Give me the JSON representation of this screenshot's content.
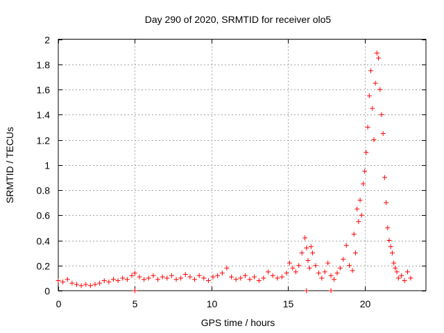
{
  "chart_data": {
    "type": "scatter",
    "title": "Day 290 of 2020, SRMTID for receiver olo5",
    "xlabel": "GPS time / hours",
    "ylabel": "SRMTID / TECUs",
    "xlim": [
      0,
      24
    ],
    "ylim": [
      0,
      2
    ],
    "xticks": [
      0,
      5,
      10,
      15,
      20
    ],
    "yticks": [
      0,
      0.2,
      0.4,
      0.6,
      0.8,
      1,
      1.2,
      1.4,
      1.6,
      1.8,
      2
    ],
    "xtick_labels": [
      "0",
      "5",
      "10",
      "15",
      "20"
    ],
    "ytick_labels": [
      "0",
      "0.2",
      "0.4",
      "0.6",
      "0.8",
      "1",
      "1.2",
      "1.4",
      "1.6",
      "1.8",
      "2"
    ],
    "grid": true,
    "marker": "+",
    "marker_color": "#ff0000",
    "series": [
      {
        "name": "SRMTID",
        "x": [
          0.0,
          0.3,
          0.6,
          0.9,
          1.2,
          1.5,
          1.8,
          2.1,
          2.4,
          2.7,
          3.0,
          3.3,
          3.6,
          3.9,
          4.2,
          4.5,
          4.8,
          5.0,
          5.3,
          5.6,
          5.9,
          6.2,
          6.5,
          6.8,
          7.1,
          7.4,
          7.7,
          8.0,
          8.3,
          8.6,
          8.9,
          9.2,
          9.5,
          9.8,
          10.1,
          10.4,
          10.7,
          11.0,
          11.3,
          11.6,
          11.9,
          12.2,
          12.5,
          12.8,
          13.1,
          13.4,
          13.7,
          14.0,
          14.3,
          14.6,
          14.9,
          15.1,
          15.3,
          15.5,
          15.7,
          15.9,
          16.1,
          16.2,
          16.3,
          16.4,
          16.5,
          16.6,
          16.8,
          17.0,
          17.2,
          17.4,
          17.6,
          17.8,
          18.0,
          18.2,
          18.4,
          18.6,
          18.8,
          19.0,
          19.2,
          19.3,
          19.4,
          19.5,
          19.6,
          19.7,
          19.8,
          19.9,
          20.0,
          20.1,
          20.2,
          20.3,
          20.4,
          20.5,
          20.6,
          20.7,
          20.8,
          20.9,
          21.0,
          21.1,
          21.2,
          21.3,
          21.4,
          21.5,
          21.6,
          21.7,
          21.8,
          21.9,
          22.0,
          22.1,
          22.2,
          22.4,
          22.6,
          22.8,
          23.0,
          5.0,
          16.2,
          17.8
        ],
        "y": [
          0.08,
          0.07,
          0.09,
          0.06,
          0.05,
          0.04,
          0.05,
          0.04,
          0.05,
          0.06,
          0.08,
          0.07,
          0.09,
          0.08,
          0.1,
          0.09,
          0.12,
          0.14,
          0.11,
          0.09,
          0.1,
          0.12,
          0.09,
          0.11,
          0.1,
          0.12,
          0.09,
          0.1,
          0.13,
          0.11,
          0.09,
          0.12,
          0.1,
          0.08,
          0.11,
          0.12,
          0.14,
          0.18,
          0.11,
          0.09,
          0.1,
          0.12,
          0.09,
          0.11,
          0.08,
          0.1,
          0.15,
          0.12,
          0.1,
          0.11,
          0.14,
          0.22,
          0.18,
          0.15,
          0.2,
          0.3,
          0.42,
          0.34,
          0.24,
          0.18,
          0.35,
          0.3,
          0.2,
          0.14,
          0.1,
          0.15,
          0.22,
          0.12,
          0.09,
          0.14,
          0.18,
          0.25,
          0.36,
          0.2,
          0.16,
          0.45,
          0.3,
          0.65,
          0.55,
          0.72,
          0.6,
          0.85,
          0.95,
          1.1,
          1.3,
          1.55,
          1.75,
          1.45,
          1.2,
          1.65,
          1.89,
          1.85,
          1.6,
          1.4,
          1.25,
          0.9,
          0.7,
          0.5,
          0.4,
          0.35,
          0.3,
          0.22,
          0.18,
          0.15,
          0.1,
          0.12,
          0.08,
          0.15,
          0.1,
          0.0,
          0.0,
          0.0
        ]
      }
    ]
  }
}
